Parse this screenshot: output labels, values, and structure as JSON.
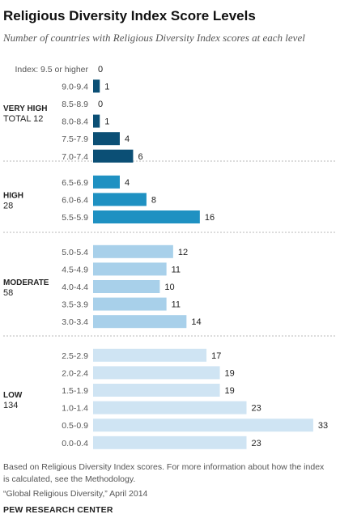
{
  "title": "Religious Diversity Index Score Levels",
  "subtitle": "Number of countries with Religious Diversity Index scores at each level",
  "note": "Based on Religious Diversity Index scores. For more information about how the index is calculated, see the Methodology.",
  "source": "“Global Religious Diversity,” April 2014",
  "brand": "PEW RESEARCH CENTER",
  "chart_data": {
    "type": "bar",
    "orientation": "horizontal",
    "grid": false,
    "legend": "none",
    "xlim": [
      0,
      33
    ],
    "groups": [
      {
        "name": "VERY HIGH",
        "total": "TOTAL 12",
        "color": "#0b4f75",
        "categories": [
          "Index: 9.5 or higher",
          "9.0-9.4",
          "8.5-8.9",
          "8.0-8.4",
          "7.5-7.9",
          "7.0-7.4"
        ],
        "values": [
          0,
          1,
          0,
          1,
          4,
          6
        ]
      },
      {
        "name": "HIGH",
        "total": "28",
        "color": "#1f91c2",
        "categories": [
          "6.5-6.9",
          "6.0-6.4",
          "5.5-5.9"
        ],
        "values": [
          4,
          8,
          16
        ]
      },
      {
        "name": "MODERATE",
        "total": "58",
        "color": "#a8d0ea",
        "categories": [
          "5.0-5.4",
          "4.5-4.9",
          "4.0-4.4",
          "3.5-3.9",
          "3.0-3.4"
        ],
        "values": [
          12,
          11,
          10,
          11,
          14
        ]
      },
      {
        "name": "LOW",
        "total": "134",
        "color": "#cfe4f3",
        "categories": [
          "2.5-2.9",
          "2.0-2.4",
          "1.5-1.9",
          "1.0-1.4",
          "0.5-0.9",
          "0.0-0.4"
        ],
        "values": [
          17,
          19,
          19,
          23,
          33,
          23
        ]
      }
    ]
  }
}
